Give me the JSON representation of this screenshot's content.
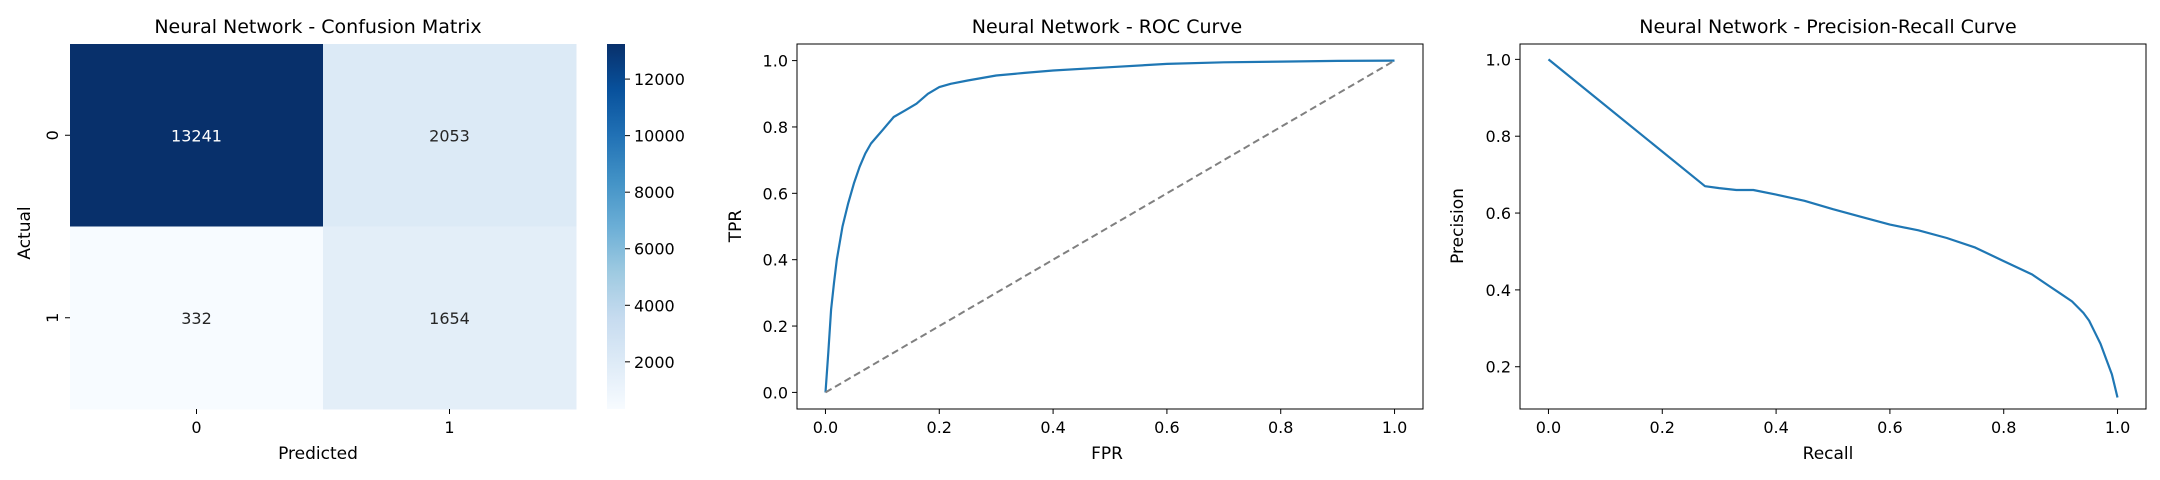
{
  "figure_title": "",
  "chart_data": [
    {
      "type": "heatmap",
      "title": "Neural Network - Confusion Matrix",
      "xlabel": "Predicted",
      "ylabel": "Actual",
      "x_categories": [
        "0",
        "1"
      ],
      "y_categories": [
        "0",
        "1"
      ],
      "values": [
        [
          13241,
          2053
        ],
        [
          332,
          1654
        ]
      ],
      "colormap": "Blues",
      "colorbar": {
        "min": 332,
        "max": 13241,
        "ticks": [
          2000,
          4000,
          6000,
          8000,
          10000,
          12000
        ],
        "tick_labels": [
          "2000",
          "4000",
          "6000",
          "8000",
          "10000",
          "12000"
        ]
      },
      "annotated": true
    },
    {
      "type": "line",
      "title": "Neural Network - ROC Curve",
      "xlabel": "FPR",
      "ylabel": "TPR",
      "xlim": [
        -0.05,
        1.05
      ],
      "ylim": [
        -0.05,
        1.05
      ],
      "xticks": [
        0.0,
        0.2,
        0.4,
        0.6,
        0.8,
        1.0
      ],
      "xtick_labels": [
        "0.0",
        "0.2",
        "0.4",
        "0.6",
        "0.8",
        "1.0"
      ],
      "yticks": [
        0.0,
        0.2,
        0.4,
        0.6,
        0.8,
        1.0
      ],
      "ytick_labels": [
        "0.0",
        "0.2",
        "0.4",
        "0.6",
        "0.8",
        "1.0"
      ],
      "grid": false,
      "series": [
        {
          "color": "#1f77b4",
          "style": "solid",
          "x": [
            0.0,
            0.005,
            0.01,
            0.015,
            0.02,
            0.03,
            0.04,
            0.05,
            0.06,
            0.07,
            0.08,
            0.09,
            0.1,
            0.12,
            0.14,
            0.16,
            0.18,
            0.2,
            0.22,
            0.25,
            0.3,
            0.35,
            0.4,
            0.5,
            0.6,
            0.7,
            0.8,
            0.9,
            1.0
          ],
          "y": [
            0.0,
            0.12,
            0.25,
            0.33,
            0.4,
            0.5,
            0.57,
            0.63,
            0.68,
            0.72,
            0.75,
            0.77,
            0.79,
            0.83,
            0.85,
            0.87,
            0.9,
            0.92,
            0.93,
            0.94,
            0.955,
            0.963,
            0.97,
            0.98,
            0.99,
            0.995,
            0.997,
            0.999,
            1.0
          ]
        },
        {
          "color": "#808080",
          "style": "dashed",
          "x": [
            0.0,
            1.0
          ],
          "y": [
            0.0,
            1.0
          ]
        }
      ]
    },
    {
      "type": "line",
      "title": "Neural Network - Precision-Recall Curve",
      "xlabel": "Recall",
      "ylabel": "Precision",
      "xlim": [
        -0.05,
        1.05
      ],
      "ylim": [
        0.09,
        1.04
      ],
      "xticks": [
        0.0,
        0.2,
        0.4,
        0.6,
        0.8,
        1.0
      ],
      "xtick_labels": [
        "0.0",
        "0.2",
        "0.4",
        "0.6",
        "0.8",
        "1.0"
      ],
      "yticks": [
        0.2,
        0.4,
        0.6,
        0.8,
        1.0
      ],
      "ytick_labels": [
        "0.2",
        "0.4",
        "0.6",
        "0.8",
        "1.0"
      ],
      "grid": false,
      "series": [
        {
          "color": "#1f77b4",
          "style": "solid",
          "x": [
            0.0,
            0.275,
            0.3,
            0.33,
            0.36,
            0.4,
            0.45,
            0.5,
            0.55,
            0.6,
            0.65,
            0.7,
            0.75,
            0.8,
            0.85,
            0.88,
            0.9,
            0.92,
            0.94,
            0.95,
            0.96,
            0.97,
            0.98,
            0.99,
            0.995,
            1.0
          ],
          "y": [
            1.0,
            0.67,
            0.665,
            0.66,
            0.66,
            0.648,
            0.632,
            0.61,
            0.59,
            0.57,
            0.555,
            0.535,
            0.51,
            0.475,
            0.44,
            0.41,
            0.39,
            0.37,
            0.34,
            0.32,
            0.29,
            0.26,
            0.22,
            0.18,
            0.15,
            0.12
          ]
        }
      ]
    }
  ]
}
